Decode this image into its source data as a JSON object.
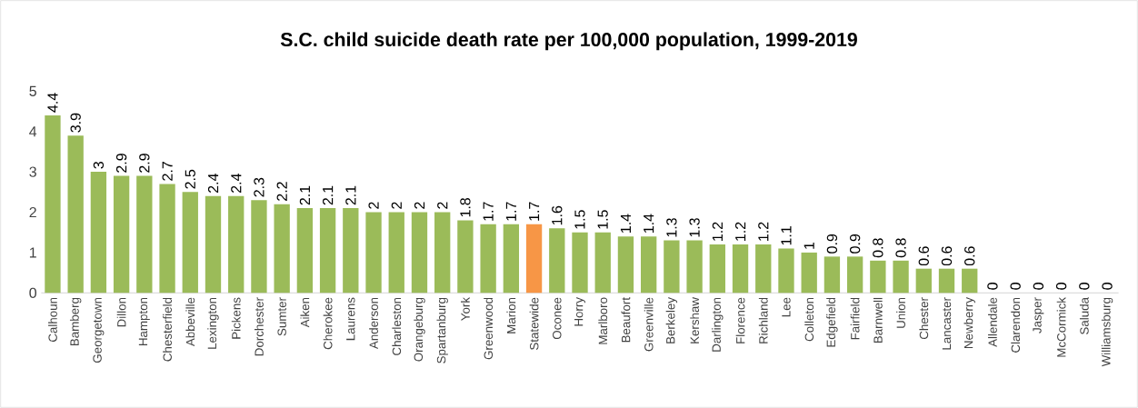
{
  "chart_data": {
    "type": "bar",
    "title": "S.C. child suicide death rate per 100,000 population, 1999-2019",
    "categories": [
      "Calhoun",
      "Bamberg",
      "Georgetown",
      "Dillon",
      "Hampton",
      "Chesterfield",
      "Abbeville",
      "Lexington",
      "Pickens",
      "Dorchester",
      "Sumter",
      "Aiken",
      "Cherokee",
      "Laurens",
      "Anderson",
      "Charleston",
      "Orangeburg",
      "Spartanburg",
      "York",
      "Greenwood",
      "Marion",
      "Statewide",
      "Oconee",
      "Horry",
      "Marlboro",
      "Beaufort",
      "Greenville",
      "Berkeley",
      "Kershaw",
      "Darlington",
      "Florence",
      "Richland",
      "Lee",
      "Colleton",
      "Edgefield",
      "Fairfield",
      "Barnwell",
      "Union",
      "Chester",
      "Lancaster",
      "Newberry",
      "Allendale",
      "Clarendon",
      "Jasper",
      "McCormick",
      "Saluda",
      "Williamsburg"
    ],
    "values": [
      4.4,
      3.9,
      3,
      2.9,
      2.9,
      2.7,
      2.5,
      2.4,
      2.4,
      2.3,
      2.2,
      2.1,
      2.1,
      2.1,
      2,
      2,
      2,
      2,
      1.8,
      1.7,
      1.7,
      1.7,
      1.6,
      1.5,
      1.5,
      1.4,
      1.4,
      1.3,
      1.3,
      1.2,
      1.2,
      1.2,
      1.1,
      1,
      0.9,
      0.9,
      0.8,
      0.8,
      0.6,
      0.6,
      0.6,
      0,
      0,
      0,
      0,
      0,
      0
    ],
    "colors": [
      "#9bbb59",
      "#9bbb59",
      "#9bbb59",
      "#9bbb59",
      "#9bbb59",
      "#9bbb59",
      "#9bbb59",
      "#9bbb59",
      "#9bbb59",
      "#9bbb59",
      "#9bbb59",
      "#9bbb59",
      "#9bbb59",
      "#9bbb59",
      "#9bbb59",
      "#9bbb59",
      "#9bbb59",
      "#9bbb59",
      "#9bbb59",
      "#9bbb59",
      "#9bbb59",
      "#f79646",
      "#9bbb59",
      "#9bbb59",
      "#9bbb59",
      "#9bbb59",
      "#9bbb59",
      "#9bbb59",
      "#9bbb59",
      "#9bbb59",
      "#9bbb59",
      "#9bbb59",
      "#9bbb59",
      "#9bbb59",
      "#9bbb59",
      "#9bbb59",
      "#9bbb59",
      "#9bbb59",
      "#9bbb59",
      "#9bbb59",
      "#9bbb59",
      "#9bbb59",
      "#9bbb59",
      "#9bbb59",
      "#9bbb59",
      "#9bbb59",
      "#9bbb59"
    ],
    "ylim": [
      0,
      5
    ],
    "yticks": [
      0,
      1,
      2,
      3,
      4,
      5
    ],
    "data_labels": true
  }
}
